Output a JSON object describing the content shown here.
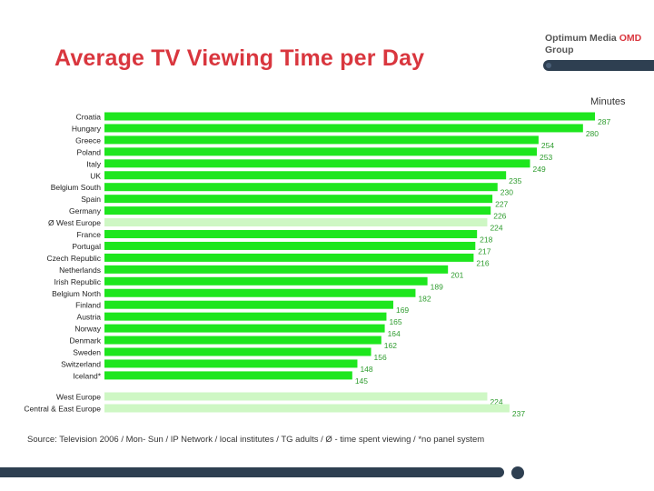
{
  "header": {
    "title": "Average TV Viewing Time per Day",
    "logo_line1_a": "Optimum Media ",
    "logo_line1_b": "OMD",
    "logo_line2": "Group",
    "unit": "Minutes"
  },
  "colors": {
    "bar": "#1ee61e",
    "bar_light": "#cef7c4",
    "title": "#d9363e",
    "dark": "#2e3f51"
  },
  "chart_data": {
    "type": "bar",
    "orientation": "horizontal",
    "title": "Average TV Viewing Time per Day",
    "unit": "Minutes",
    "xlim": [
      0,
      287
    ],
    "grid": false,
    "categories": [
      "Croatia",
      "Hungary",
      "Greece",
      "Poland",
      "Italy",
      "UK",
      "Belgium South",
      "Spain",
      "Germany",
      "Ø West Europe",
      "France",
      "Portugal",
      "Czech Republic",
      "Netherlands",
      "Irish Republic",
      "Belgium North",
      "Finland",
      "Austria",
      "Norway",
      "Denmark",
      "Sweden",
      "Switzerland",
      "Iceland*"
    ],
    "values": [
      287,
      280,
      254,
      253,
      249,
      235,
      230,
      227,
      226,
      224,
      218,
      217,
      216,
      201,
      189,
      182,
      169,
      165,
      164,
      162,
      156,
      148,
      145
    ],
    "highlight": [
      "Ø West Europe"
    ],
    "summary": {
      "categories": [
        "West Europe",
        "Central & East Europe"
      ],
      "values": [
        224,
        237
      ]
    }
  },
  "source": "Source: Television 2006 / Mon- Sun / IP Network / local institutes / TG adults / Ø - time spent viewing / *no panel system"
}
